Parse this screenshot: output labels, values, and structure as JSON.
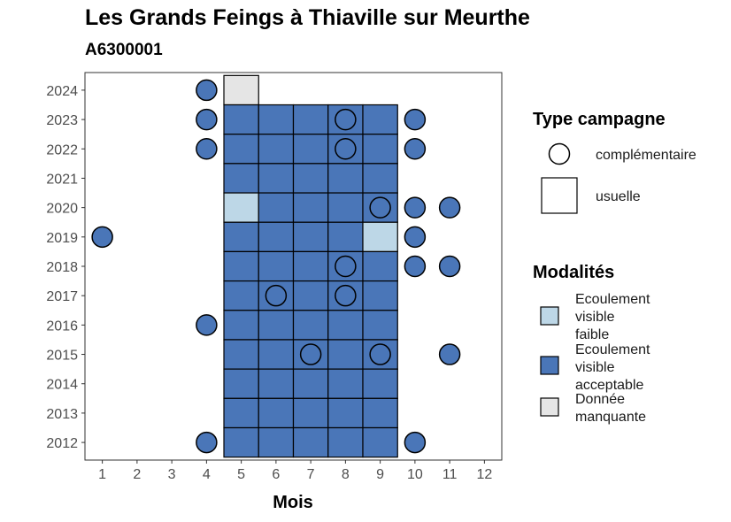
{
  "chart_data": {
    "type": "heatmap",
    "title": "Les Grands Feings à Thiaville sur Meurthe",
    "subtitle": "A6300001",
    "xlabel": "Mois",
    "ylabel": "",
    "x_ticks": [
      1,
      2,
      3,
      4,
      5,
      6,
      7,
      8,
      9,
      10,
      11,
      12
    ],
    "y_ticks": [
      2012,
      2013,
      2014,
      2015,
      2016,
      2017,
      2018,
      2019,
      2020,
      2021,
      2022,
      2023,
      2024
    ],
    "xlim": [
      0.5,
      12.5
    ],
    "ylim": [
      2011.4,
      2024.6
    ],
    "colors": {
      "Ecoulement visible faible": "#bdd7e7",
      "Ecoulement visible acceptable": "#4a76b8",
      "Donnée manquante": "#e5e5e5"
    },
    "points": [
      {
        "year": 2024,
        "month": 4,
        "type": "complémentaire",
        "modalite": "Ecoulement visible acceptable"
      },
      {
        "year": 2024,
        "month": 5,
        "type": "usuelle",
        "modalite": "Donnée manquante"
      },
      {
        "year": 2023,
        "month": 4,
        "type": "complémentaire",
        "modalite": "Ecoulement visible acceptable"
      },
      {
        "year": 2023,
        "month": 5,
        "type": "usuelle",
        "modalite": "Ecoulement visible acceptable"
      },
      {
        "year": 2023,
        "month": 6,
        "type": "usuelle",
        "modalite": "Ecoulement visible acceptable"
      },
      {
        "year": 2023,
        "month": 7,
        "type": "usuelle",
        "modalite": "Ecoulement visible acceptable"
      },
      {
        "year": 2023,
        "month": 8,
        "type": "usuelle",
        "modalite": "Ecoulement visible acceptable"
      },
      {
        "year": 2023,
        "month": 8,
        "type": "complémentaire",
        "modalite": "Ecoulement visible acceptable"
      },
      {
        "year": 2023,
        "month": 9,
        "type": "usuelle",
        "modalite": "Ecoulement visible acceptable"
      },
      {
        "year": 2023,
        "month": 10,
        "type": "complémentaire",
        "modalite": "Ecoulement visible acceptable"
      },
      {
        "year": 2022,
        "month": 4,
        "type": "complémentaire",
        "modalite": "Ecoulement visible acceptable"
      },
      {
        "year": 2022,
        "month": 5,
        "type": "usuelle",
        "modalite": "Ecoulement visible acceptable"
      },
      {
        "year": 2022,
        "month": 6,
        "type": "usuelle",
        "modalite": "Ecoulement visible acceptable"
      },
      {
        "year": 2022,
        "month": 7,
        "type": "usuelle",
        "modalite": "Ecoulement visible acceptable"
      },
      {
        "year": 2022,
        "month": 8,
        "type": "usuelle",
        "modalite": "Ecoulement visible acceptable"
      },
      {
        "year": 2022,
        "month": 8,
        "type": "complémentaire",
        "modalite": "Ecoulement visible acceptable"
      },
      {
        "year": 2022,
        "month": 9,
        "type": "usuelle",
        "modalite": "Ecoulement visible acceptable"
      },
      {
        "year": 2022,
        "month": 10,
        "type": "complémentaire",
        "modalite": "Ecoulement visible acceptable"
      },
      {
        "year": 2021,
        "month": 5,
        "type": "usuelle",
        "modalite": "Ecoulement visible acceptable"
      },
      {
        "year": 2021,
        "month": 6,
        "type": "usuelle",
        "modalite": "Ecoulement visible acceptable"
      },
      {
        "year": 2021,
        "month": 7,
        "type": "usuelle",
        "modalite": "Ecoulement visible acceptable"
      },
      {
        "year": 2021,
        "month": 8,
        "type": "usuelle",
        "modalite": "Ecoulement visible acceptable"
      },
      {
        "year": 2021,
        "month": 9,
        "type": "usuelle",
        "modalite": "Ecoulement visible acceptable"
      },
      {
        "year": 2020,
        "month": 5,
        "type": "usuelle",
        "modalite": "Ecoulement visible faible"
      },
      {
        "year": 2020,
        "month": 6,
        "type": "usuelle",
        "modalite": "Ecoulement visible acceptable"
      },
      {
        "year": 2020,
        "month": 7,
        "type": "usuelle",
        "modalite": "Ecoulement visible acceptable"
      },
      {
        "year": 2020,
        "month": 8,
        "type": "usuelle",
        "modalite": "Ecoulement visible acceptable"
      },
      {
        "year": 2020,
        "month": 9,
        "type": "usuelle",
        "modalite": "Ecoulement visible acceptable"
      },
      {
        "year": 2020,
        "month": 9,
        "type": "complémentaire",
        "modalite": "Ecoulement visible acceptable"
      },
      {
        "year": 2020,
        "month": 10,
        "type": "complémentaire",
        "modalite": "Ecoulement visible acceptable"
      },
      {
        "year": 2020,
        "month": 11,
        "type": "complémentaire",
        "modalite": "Ecoulement visible acceptable"
      },
      {
        "year": 2019,
        "month": 1,
        "type": "complémentaire",
        "modalite": "Ecoulement visible acceptable"
      },
      {
        "year": 2019,
        "month": 5,
        "type": "usuelle",
        "modalite": "Ecoulement visible acceptable"
      },
      {
        "year": 2019,
        "month": 6,
        "type": "usuelle",
        "modalite": "Ecoulement visible acceptable"
      },
      {
        "year": 2019,
        "month": 7,
        "type": "usuelle",
        "modalite": "Ecoulement visible acceptable"
      },
      {
        "year": 2019,
        "month": 8,
        "type": "usuelle",
        "modalite": "Ecoulement visible acceptable"
      },
      {
        "year": 2019,
        "month": 9,
        "type": "usuelle",
        "modalite": "Ecoulement visible faible"
      },
      {
        "year": 2019,
        "month": 10,
        "type": "complémentaire",
        "modalite": "Ecoulement visible acceptable"
      },
      {
        "year": 2018,
        "month": 5,
        "type": "usuelle",
        "modalite": "Ecoulement visible acceptable"
      },
      {
        "year": 2018,
        "month": 6,
        "type": "usuelle",
        "modalite": "Ecoulement visible acceptable"
      },
      {
        "year": 2018,
        "month": 7,
        "type": "usuelle",
        "modalite": "Ecoulement visible acceptable"
      },
      {
        "year": 2018,
        "month": 8,
        "type": "usuelle",
        "modalite": "Ecoulement visible acceptable"
      },
      {
        "year": 2018,
        "month": 8,
        "type": "complémentaire",
        "modalite": "Ecoulement visible acceptable"
      },
      {
        "year": 2018,
        "month": 9,
        "type": "usuelle",
        "modalite": "Ecoulement visible acceptable"
      },
      {
        "year": 2018,
        "month": 10,
        "type": "complémentaire",
        "modalite": "Ecoulement visible acceptable"
      },
      {
        "year": 2018,
        "month": 11,
        "type": "complémentaire",
        "modalite": "Ecoulement visible acceptable"
      },
      {
        "year": 2017,
        "month": 5,
        "type": "usuelle",
        "modalite": "Ecoulement visible acceptable"
      },
      {
        "year": 2017,
        "month": 6,
        "type": "usuelle",
        "modalite": "Ecoulement visible acceptable"
      },
      {
        "year": 2017,
        "month": 6,
        "type": "complémentaire",
        "modalite": "Ecoulement visible acceptable"
      },
      {
        "year": 2017,
        "month": 7,
        "type": "usuelle",
        "modalite": "Ecoulement visible acceptable"
      },
      {
        "year": 2017,
        "month": 8,
        "type": "usuelle",
        "modalite": "Ecoulement visible acceptable"
      },
      {
        "year": 2017,
        "month": 8,
        "type": "complémentaire",
        "modalite": "Ecoulement visible acceptable"
      },
      {
        "year": 2017,
        "month": 9,
        "type": "usuelle",
        "modalite": "Ecoulement visible acceptable"
      },
      {
        "year": 2016,
        "month": 4,
        "type": "complémentaire",
        "modalite": "Ecoulement visible acceptable"
      },
      {
        "year": 2016,
        "month": 5,
        "type": "usuelle",
        "modalite": "Ecoulement visible acceptable"
      },
      {
        "year": 2016,
        "month": 6,
        "type": "usuelle",
        "modalite": "Ecoulement visible acceptable"
      },
      {
        "year": 2016,
        "month": 7,
        "type": "usuelle",
        "modalite": "Ecoulement visible acceptable"
      },
      {
        "year": 2016,
        "month": 8,
        "type": "usuelle",
        "modalite": "Ecoulement visible acceptable"
      },
      {
        "year": 2016,
        "month": 9,
        "type": "usuelle",
        "modalite": "Ecoulement visible acceptable"
      },
      {
        "year": 2015,
        "month": 5,
        "type": "usuelle",
        "modalite": "Ecoulement visible acceptable"
      },
      {
        "year": 2015,
        "month": 6,
        "type": "usuelle",
        "modalite": "Ecoulement visible acceptable"
      },
      {
        "year": 2015,
        "month": 7,
        "type": "usuelle",
        "modalite": "Ecoulement visible acceptable"
      },
      {
        "year": 2015,
        "month": 7,
        "type": "complémentaire",
        "modalite": "Ecoulement visible acceptable"
      },
      {
        "year": 2015,
        "month": 8,
        "type": "usuelle",
        "modalite": "Ecoulement visible acceptable"
      },
      {
        "year": 2015,
        "month": 9,
        "type": "usuelle",
        "modalite": "Ecoulement visible acceptable"
      },
      {
        "year": 2015,
        "month": 9,
        "type": "complémentaire",
        "modalite": "Ecoulement visible acceptable"
      },
      {
        "year": 2015,
        "month": 11,
        "type": "complémentaire",
        "modalite": "Ecoulement visible acceptable"
      },
      {
        "year": 2014,
        "month": 5,
        "type": "usuelle",
        "modalite": "Ecoulement visible acceptable"
      },
      {
        "year": 2014,
        "month": 6,
        "type": "usuelle",
        "modalite": "Ecoulement visible acceptable"
      },
      {
        "year": 2014,
        "month": 7,
        "type": "usuelle",
        "modalite": "Ecoulement visible acceptable"
      },
      {
        "year": 2014,
        "month": 8,
        "type": "usuelle",
        "modalite": "Ecoulement visible acceptable"
      },
      {
        "year": 2014,
        "month": 9,
        "type": "usuelle",
        "modalite": "Ecoulement visible acceptable"
      },
      {
        "year": 2013,
        "month": 5,
        "type": "usuelle",
        "modalite": "Ecoulement visible acceptable"
      },
      {
        "year": 2013,
        "month": 6,
        "type": "usuelle",
        "modalite": "Ecoulement visible acceptable"
      },
      {
        "year": 2013,
        "month": 7,
        "type": "usuelle",
        "modalite": "Ecoulement visible acceptable"
      },
      {
        "year": 2013,
        "month": 8,
        "type": "usuelle",
        "modalite": "Ecoulement visible acceptable"
      },
      {
        "year": 2013,
        "month": 9,
        "type": "usuelle",
        "modalite": "Ecoulement visible acceptable"
      },
      {
        "year": 2012,
        "month": 4,
        "type": "complémentaire",
        "modalite": "Ecoulement visible acceptable"
      },
      {
        "year": 2012,
        "month": 5,
        "type": "usuelle",
        "modalite": "Ecoulement visible acceptable"
      },
      {
        "year": 2012,
        "month": 6,
        "type": "usuelle",
        "modalite": "Ecoulement visible acceptable"
      },
      {
        "year": 2012,
        "month": 7,
        "type": "usuelle",
        "modalite": "Ecoulement visible acceptable"
      },
      {
        "year": 2012,
        "month": 8,
        "type": "usuelle",
        "modalite": "Ecoulement visible acceptable"
      },
      {
        "year": 2012,
        "month": 9,
        "type": "usuelle",
        "modalite": "Ecoulement visible acceptable"
      },
      {
        "year": 2012,
        "month": 10,
        "type": "complémentaire",
        "modalite": "Ecoulement visible acceptable"
      }
    ],
    "legend": {
      "type_title": "Type campagne",
      "type_entries": [
        "complémentaire",
        "usuelle"
      ],
      "modalites_title": "Modalités",
      "modalites_entries": [
        {
          "lines": [
            "Ecoulement",
            "visible",
            "faible"
          ],
          "color_key": "Ecoulement visible faible"
        },
        {
          "lines": [
            "Ecoulement",
            "visible",
            "acceptable"
          ],
          "color_key": "Ecoulement visible acceptable"
        },
        {
          "lines": [
            "Donnée",
            "manquante"
          ],
          "color_key": "Donnée manquante"
        }
      ]
    }
  }
}
